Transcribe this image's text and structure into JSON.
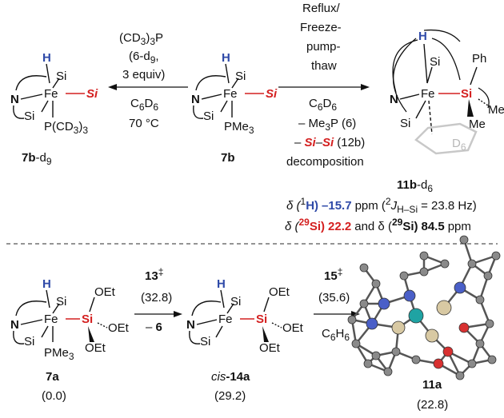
{
  "top": {
    "step1": {
      "reagent_a": "(CD",
      "reagent_a_sub": "3",
      "reagent_a_tail": ")",
      "reagent_a_sub2": "3",
      "reagent_a_end": "P",
      "reagent_b": "(6-d",
      "reagent_b_sub": "9",
      "reagent_b_end": ",",
      "reagent_c": "3 equiv)",
      "solvent": "C",
      "solvent_sub1": "6",
      "solvent_mid": "D",
      "solvent_sub2": "6",
      "temperature": "70 °C"
    },
    "step2": {
      "cond1": "Reflux/",
      "cond2": "Freeze-",
      "cond3": "pump-",
      "cond4": "thaw",
      "solvent": "C",
      "solvent_sub1": "6",
      "solvent_mid": "D",
      "solvent_sub2": "6",
      "loss1": "– Me",
      "loss1_sub": "3",
      "loss1_end": "P (6)",
      "loss2_si1": "Si",
      "loss2_dash": "–",
      "loss2_si2": "Si",
      "loss2_end": "(12b)",
      "loss3": "decomposition"
    },
    "compounds": {
      "c7b_d9": "7b",
      "c7b_d9_suffix": "-d",
      "c7b_d9_sub": "9",
      "c7b": "7b",
      "c11b": "11b",
      "c11b_suffix": "-d",
      "c11b_sub": "6"
    },
    "atoms": {
      "H": "H",
      "Si": "Si",
      "Fe": "Fe",
      "N": "N",
      "P_CD3": "P(CD",
      "P_CD3_sub": "3",
      "P_CD3_end": ")",
      "P_CD3_sub2": "3",
      "PMe": "PMe",
      "PMe_sub": "3",
      "Ph": "Ph",
      "Me": "Me",
      "D6": "D",
      "D6_sub": "6"
    },
    "nmr": {
      "line1_delta": "δ (",
      "line1_sup": "1",
      "line1_H": "H)",
      "line1_val": "–15.7",
      "line1_unit": "ppm (",
      "line1_sup2": "2",
      "line1_J": "J",
      "line1_Jsub": "H–Si",
      "line1_end": "= 23.8 Hz)",
      "line2_delta": "δ (",
      "line2_sup": "29",
      "line2_Si": "Si)",
      "line2_val1": "22.2",
      "line2_and": "and δ (",
      "line2_sup2": "29",
      "line2_Si2": "Si)",
      "line2_val2": "84.5",
      "line2_unit": "ppm"
    }
  },
  "bottom": {
    "ts13": "13",
    "ts13_sup": "‡",
    "ts13_energy": "(32.8)",
    "ts13_loss": "– 6",
    "ts15": "15",
    "ts15_sup": "‡",
    "ts15_energy": "(35.6)",
    "ts15_solvent": "C",
    "ts15_solvent_sub1": "6",
    "ts15_solvent_mid": "H",
    "ts15_solvent_sub2": "6",
    "c7a": "7a",
    "c7a_energy": "(0.0)",
    "c14a_prefix": "cis",
    "c14a": "-14a",
    "c14a_energy": "(29.2)",
    "c11a": "11a",
    "c11a_energy": "(22.8)",
    "OEt": "OEt"
  },
  "colors": {
    "hydride_blue": "#2f4aa8",
    "silyl_red": "#d42020",
    "fe_teal": "#1fa3a3",
    "si_tan": "#d8c9a3",
    "n_blue": "#4a5fc8",
    "o_red": "#d83030",
    "c_gray": "#8a8a8a"
  }
}
